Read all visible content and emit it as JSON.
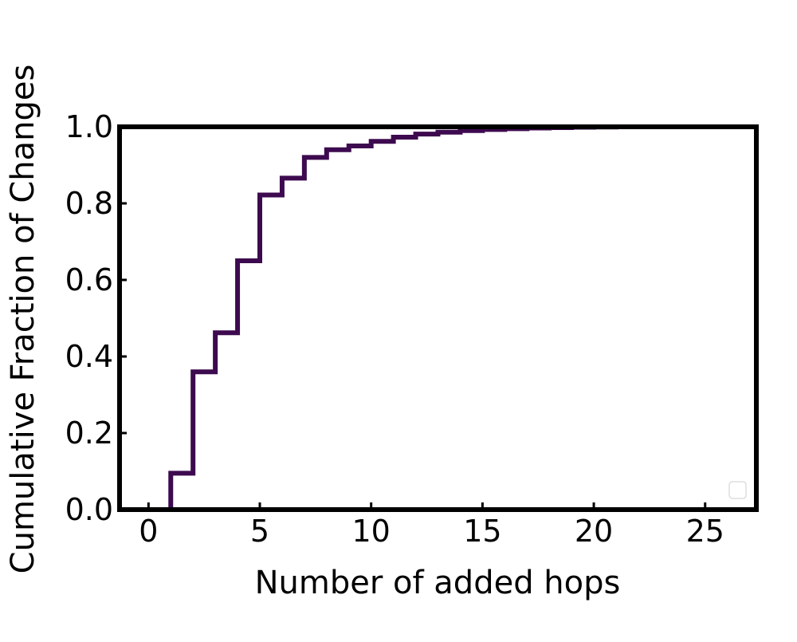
{
  "chart_data": {
    "type": "line",
    "title": "",
    "xlabel": "Number of added hops",
    "ylabel": "Cumulative Fraction of Changes",
    "xlim": [
      -1.3,
      27.3
    ],
    "ylim": [
      0.0,
      1.0
    ],
    "xticks": [
      0,
      5,
      10,
      15,
      20,
      25
    ],
    "yticks": [
      0.0,
      0.2,
      0.4,
      0.6,
      0.8,
      1.0
    ],
    "xtick_labels": [
      "0",
      "5",
      "10",
      "15",
      "20",
      "25"
    ],
    "ytick_labels": [
      "0.0",
      "0.2",
      "0.4",
      "0.6",
      "0.8",
      "1.0"
    ],
    "grid": false,
    "legend": {
      "placement": "lower-right",
      "entries": []
    },
    "series": [
      {
        "color": "#3d0a4f",
        "step": "post",
        "x": [
          1,
          2,
          3,
          4,
          5,
          6,
          7,
          8,
          9,
          10,
          11,
          12,
          13,
          14,
          15,
          16,
          17,
          18,
          19,
          20,
          21
        ],
        "y": [
          0.095,
          0.36,
          0.462,
          0.65,
          0.822,
          0.866,
          0.92,
          0.94,
          0.95,
          0.962,
          0.973,
          0.981,
          0.986,
          0.99,
          0.993,
          0.995,
          0.997,
          0.998,
          0.999,
          0.9995,
          1.0
        ]
      }
    ]
  }
}
